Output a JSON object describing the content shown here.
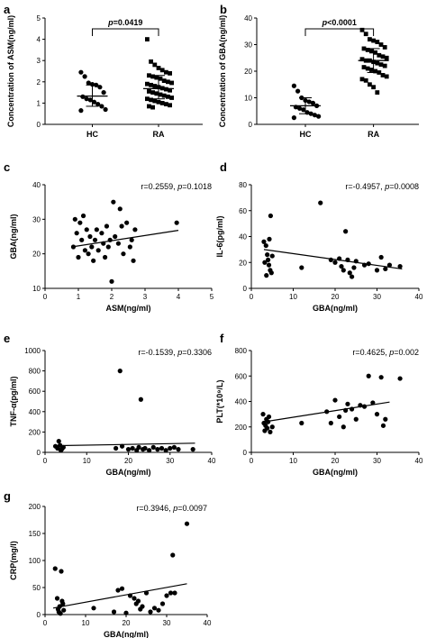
{
  "chart_data": [
    {
      "panel": "a",
      "type": "scatter",
      "categories": [
        "HC",
        "RA"
      ],
      "ylabel": "Concentration of ASM(ng/ml)",
      "ylim": [
        0,
        5
      ],
      "yticks": [
        "0",
        "1",
        "2",
        "3",
        "4",
        "5"
      ],
      "significance": {
        "p_label": "p",
        "p_value": "=0.0419"
      },
      "series": [
        {
          "name": "HC",
          "marker": "circle",
          "mean": 1.33,
          "sd_low": 0.85,
          "sd_high": 1.85,
          "values": [
            2.45,
            2.25,
            1.95,
            1.88,
            1.85,
            1.75,
            1.5,
            1.3,
            1.2,
            1.15,
            1.05,
            0.95,
            0.85,
            0.7,
            0.65
          ]
        },
        {
          "name": "RA",
          "marker": "square",
          "mean": 1.68,
          "sd_low": 1.2,
          "sd_high": 2.3,
          "values": [
            4.0,
            2.95,
            2.8,
            2.65,
            2.55,
            2.45,
            2.4,
            2.3,
            2.25,
            2.2,
            2.15,
            2.05,
            2.0,
            1.95,
            1.9,
            1.85,
            1.8,
            1.75,
            1.7,
            1.65,
            1.6,
            1.55,
            1.5,
            1.45,
            1.4,
            1.35,
            1.3,
            1.25,
            1.2,
            1.15,
            1.1,
            1.05,
            1.0,
            0.95,
            0.9,
            0.85,
            0.8
          ]
        }
      ]
    },
    {
      "panel": "b",
      "type": "scatter",
      "categories": [
        "HC",
        "RA"
      ],
      "ylabel": "Concentration of GBA(ng/ml)",
      "ylim": [
        0,
        40
      ],
      "yticks": [
        "0",
        "10",
        "20",
        "30",
        "40"
      ],
      "significance": {
        "p_label": "p",
        "p_value": "<0.0001"
      },
      "series": [
        {
          "name": "HC",
          "marker": "circle",
          "mean": 7.0,
          "sd_low": 4.0,
          "sd_high": 10.0,
          "values": [
            14.5,
            12.5,
            10.0,
            9.0,
            8.5,
            8.0,
            7.0,
            6.5,
            6.0,
            5.5,
            4.5,
            4.0,
            3.5,
            3.0,
            2.5
          ]
        },
        {
          "name": "RA",
          "marker": "square",
          "mean": 24.0,
          "sd_low": 19.5,
          "sd_high": 28.5,
          "values": [
            35.5,
            34.0,
            32.0,
            31.5,
            31.0,
            30.0,
            29.0,
            28.5,
            28.0,
            27.5,
            27.0,
            26.0,
            25.5,
            25.0,
            24.5,
            24.0,
            24.0,
            23.5,
            23.0,
            22.5,
            22.0,
            21.5,
            21.0,
            20.5,
            20.0,
            19.5,
            18.5,
            18.0,
            17.0,
            16.5,
            15.0,
            14.0,
            12.0
          ]
        }
      ]
    },
    {
      "panel": "c",
      "type": "scatter",
      "xlabel": "ASM(ng/ml)",
      "ylabel": "GBA(ng/ml)",
      "xlim": [
        0,
        5
      ],
      "ylim": [
        10,
        40
      ],
      "xticks": [
        "0",
        "1",
        "2",
        "3",
        "4",
        "5"
      ],
      "yticks": [
        "10",
        "20",
        "30",
        "40"
      ],
      "stat": {
        "r_text": "r=0.2559, ",
        "p_label": "p",
        "p_value": "=0.1018"
      },
      "regression": {
        "x": [
          0.8,
          4.0
        ],
        "y": [
          22.0,
          26.8
        ]
      },
      "points": [
        [
          0.85,
          22
        ],
        [
          0.9,
          30
        ],
        [
          0.95,
          26
        ],
        [
          1.0,
          19
        ],
        [
          1.05,
          29
        ],
        [
          1.1,
          24
        ],
        [
          1.15,
          31
        ],
        [
          1.2,
          21
        ],
        [
          1.25,
          27
        ],
        [
          1.3,
          20
        ],
        [
          1.35,
          25
        ],
        [
          1.4,
          22
        ],
        [
          1.45,
          18
        ],
        [
          1.5,
          24
        ],
        [
          1.55,
          27
        ],
        [
          1.6,
          21
        ],
        [
          1.7,
          26
        ],
        [
          1.75,
          23
        ],
        [
          1.8,
          19
        ],
        [
          1.85,
          28
        ],
        [
          1.9,
          22
        ],
        [
          1.95,
          24
        ],
        [
          2.0,
          12
        ],
        [
          2.05,
          35
        ],
        [
          2.1,
          25
        ],
        [
          2.2,
          23
        ],
        [
          2.25,
          33
        ],
        [
          2.3,
          28
        ],
        [
          2.35,
          20
        ],
        [
          2.45,
          29
        ],
        [
          2.55,
          22
        ],
        [
          2.6,
          24
        ],
        [
          2.65,
          18
        ],
        [
          2.7,
          27
        ],
        [
          3.95,
          29
        ]
      ]
    },
    {
      "panel": "d",
      "type": "scatter",
      "xlabel": "GBA(ng/ml)",
      "ylabel": "IL-6(pg/ml)",
      "xlim": [
        0,
        40
      ],
      "ylim": [
        0,
        80
      ],
      "xticks": [
        "0",
        "10",
        "20",
        "30",
        "40"
      ],
      "yticks": [
        "0",
        "20",
        "40",
        "60",
        "80"
      ],
      "stat": {
        "r_text": "r=-0.4957, ",
        "p_label": "p",
        "p_value": "=0.0008"
      },
      "regression": {
        "x": [
          3,
          36
        ],
        "y": [
          30,
          15
        ]
      },
      "points": [
        [
          3,
          36
        ],
        [
          3.5,
          33
        ],
        [
          3.8,
          26
        ],
        [
          4.0,
          22
        ],
        [
          4.2,
          18
        ],
        [
          4.5,
          14
        ],
        [
          3.2,
          20
        ],
        [
          3.6,
          10
        ],
        [
          4.8,
          12
        ],
        [
          4.3,
          38
        ],
        [
          4.6,
          56
        ],
        [
          5,
          25
        ],
        [
          12,
          16
        ],
        [
          16.5,
          66
        ],
        [
          19,
          22
        ],
        [
          20,
          20
        ],
        [
          21,
          23
        ],
        [
          21.5,
          17
        ],
        [
          22,
          14
        ],
        [
          22.5,
          44
        ],
        [
          23,
          22
        ],
        [
          23.5,
          12
        ],
        [
          24,
          9
        ],
        [
          24.5,
          16
        ],
        [
          25,
          21
        ],
        [
          27,
          18
        ],
        [
          28,
          19
        ],
        [
          30,
          14
        ],
        [
          31,
          24
        ],
        [
          32,
          15
        ],
        [
          33,
          18
        ],
        [
          35.5,
          17
        ]
      ]
    },
    {
      "panel": "e",
      "type": "scatter",
      "xlabel": "GBA(ng/ml)",
      "ylabel": "TNF-α(pg/ml)",
      "xlim": [
        0,
        40
      ],
      "ylim": [
        0,
        1000
      ],
      "xticks": [
        "0",
        "10",
        "20",
        "30",
        "40"
      ],
      "yticks": [
        "0",
        "200",
        "400",
        "600",
        "800",
        "1000"
      ],
      "stat": {
        "r_text": "r=-0.1539, ",
        "p_label": "p",
        "p_value": "=0.3306"
      },
      "regression": {
        "x": [
          2,
          36
        ],
        "y": [
          65,
          90
        ]
      },
      "points": [
        [
          2.5,
          60
        ],
        [
          3,
          40
        ],
        [
          3.3,
          110
        ],
        [
          3.6,
          70
        ],
        [
          4,
          30
        ],
        [
          4.4,
          50
        ],
        [
          3.8,
          20
        ],
        [
          17,
          40
        ],
        [
          18,
          800
        ],
        [
          18.5,
          60
        ],
        [
          20,
          30
        ],
        [
          21,
          40
        ],
        [
          22,
          20
        ],
        [
          22.5,
          50
        ],
        [
          23,
          520
        ],
        [
          23.5,
          30
        ],
        [
          24,
          40
        ],
        [
          25,
          20
        ],
        [
          26,
          50
        ],
        [
          27,
          30
        ],
        [
          28,
          40
        ],
        [
          29,
          20
        ],
        [
          30,
          40
        ],
        [
          31,
          50
        ],
        [
          32,
          30
        ],
        [
          35.5,
          30
        ]
      ]
    },
    {
      "panel": "f",
      "type": "scatter",
      "xlabel": "GBA(ng/ml)",
      "ylabel": "PLT(*10⁹/L)",
      "xlim": [
        0,
        40
      ],
      "ylim": [
        0,
        800
      ],
      "xticks": [
        "0",
        "10",
        "20",
        "30",
        "40"
      ],
      "yticks": [
        "0",
        "200",
        "400",
        "600",
        "800"
      ],
      "stat": {
        "r_text": "r=0.4625, ",
        "p_label": "p",
        "p_value": "=0.002"
      },
      "regression": {
        "x": [
          3,
          33
        ],
        "y": [
          240,
          395
        ]
      },
      "points": [
        [
          2.8,
          300
        ],
        [
          3,
          230
        ],
        [
          3.2,
          170
        ],
        [
          3.4,
          210
        ],
        [
          3.6,
          260
        ],
        [
          3.8,
          190
        ],
        [
          4.0,
          240
        ],
        [
          4.2,
          280
        ],
        [
          4.5,
          160
        ],
        [
          5.0,
          200
        ],
        [
          12,
          230
        ],
        [
          18,
          320
        ],
        [
          19,
          230
        ],
        [
          20,
          410
        ],
        [
          21,
          280
        ],
        [
          22,
          200
        ],
        [
          22.5,
          330
        ],
        [
          23,
          380
        ],
        [
          24,
          340
        ],
        [
          25,
          260
        ],
        [
          26,
          370
        ],
        [
          27,
          360
        ],
        [
          28,
          600
        ],
        [
          29,
          390
        ],
        [
          30,
          300
        ],
        [
          31,
          590
        ],
        [
          31.5,
          210
        ],
        [
          32,
          260
        ],
        [
          35.5,
          580
        ]
      ]
    },
    {
      "panel": "g",
      "type": "scatter",
      "xlabel": "GBA(ng/ml)",
      "ylabel": "CRP(mg/l)",
      "xlim": [
        0,
        40
      ],
      "ylim": [
        0,
        200
      ],
      "xticks": [
        "0",
        "10",
        "20",
        "30",
        "40"
      ],
      "yticks": [
        "0",
        "50",
        "100",
        "150",
        "200"
      ],
      "stat": {
        "r_text": "r=0.3946, ",
        "p_label": "p",
        "p_value": "=0.0097"
      },
      "regression": {
        "x": [
          2,
          35
        ],
        "y": [
          12,
          57
        ]
      },
      "points": [
        [
          2.5,
          85
        ],
        [
          3,
          30
        ],
        [
          3.2,
          10
        ],
        [
          3.4,
          5
        ],
        [
          3.6,
          15
        ],
        [
          3.8,
          2
        ],
        [
          4,
          80
        ],
        [
          4.2,
          25
        ],
        [
          4.4,
          20
        ],
        [
          4.6,
          8
        ],
        [
          12,
          12
        ],
        [
          17,
          5
        ],
        [
          18,
          45
        ],
        [
          19,
          48
        ],
        [
          20,
          3
        ],
        [
          21,
          35
        ],
        [
          22,
          30
        ],
        [
          22.5,
          20
        ],
        [
          23,
          25
        ],
        [
          23.5,
          10
        ],
        [
          24,
          15
        ],
        [
          25,
          40
        ],
        [
          26,
          5
        ],
        [
          27,
          12
        ],
        [
          28,
          8
        ],
        [
          29,
          20
        ],
        [
          30,
          35
        ],
        [
          31,
          40
        ],
        [
          31.5,
          110
        ],
        [
          32,
          40
        ],
        [
          35,
          168
        ]
      ]
    }
  ]
}
